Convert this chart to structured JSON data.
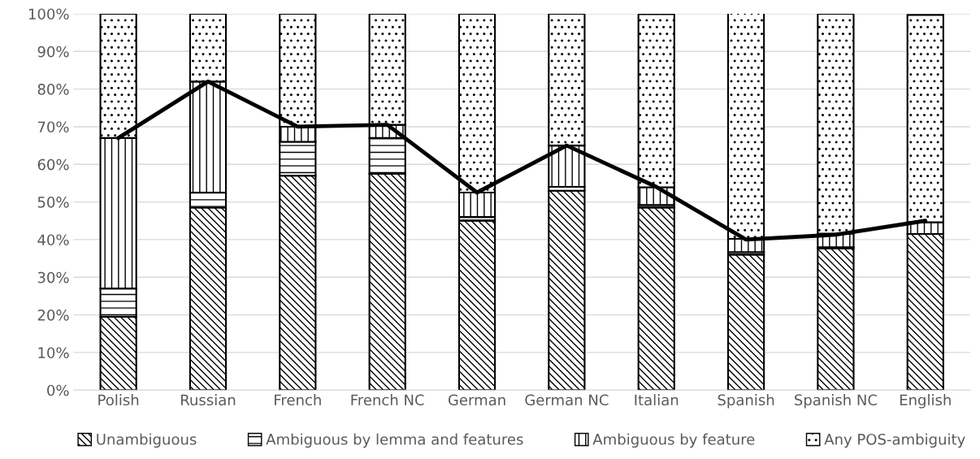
{
  "chart_data": {
    "type": "bar",
    "stacked": true,
    "categories": [
      "Polish",
      "Russian",
      "French",
      "French NC",
      "German",
      "German NC",
      "Italian",
      "Spanish",
      "Spanish NC",
      "English"
    ],
    "series": [
      {
        "name": "Unambiguous",
        "color": "#000000",
        "values": [
          19.5,
          48.5,
          57,
          57.5,
          45,
          53,
          48.5,
          36,
          37.7,
          41.5
        ]
      },
      {
        "name": "Ambiguous by lemma and features",
        "color": "#000000",
        "values": [
          7.5,
          4,
          9,
          9.5,
          1,
          1,
          0.7,
          0.7,
          0.3,
          null
        ]
      },
      {
        "name": "Ambiguous by feature",
        "color": "#000000",
        "values": [
          40,
          29.5,
          4,
          3.5,
          6.5,
          11,
          4.7,
          3.5,
          3.6,
          3.1
        ]
      },
      {
        "name": "Any POS-ambiguity",
        "color": "#000000",
        "values": [
          33,
          18,
          30,
          29.5,
          47.5,
          35,
          46,
          60,
          58.4,
          55.1
        ]
      },
      {
        "type": "line",
        "color": "#000000",
        "values": [
          67,
          82,
          70,
          70.5,
          52.5,
          65,
          54,
          40,
          41.3,
          45
        ]
      }
    ],
    "ylim": [
      0,
      100
    ],
    "yticks": [
      {
        "value": 0,
        "label": "0%"
      },
      {
        "value": 10,
        "label": "10%"
      },
      {
        "value": 20,
        "label": "20%"
      },
      {
        "value": 30,
        "label": "30%"
      },
      {
        "value": 40,
        "label": "40%"
      },
      {
        "value": 50,
        "label": "50%"
      },
      {
        "value": 60,
        "label": "60%"
      },
      {
        "value": 70,
        "label": "70%"
      },
      {
        "value": 80,
        "label": "80%"
      },
      {
        "value": 90,
        "label": "90%"
      },
      {
        "value": 100,
        "label": "100%"
      }
    ],
    "grid": "y",
    "legend": "bottom"
  }
}
